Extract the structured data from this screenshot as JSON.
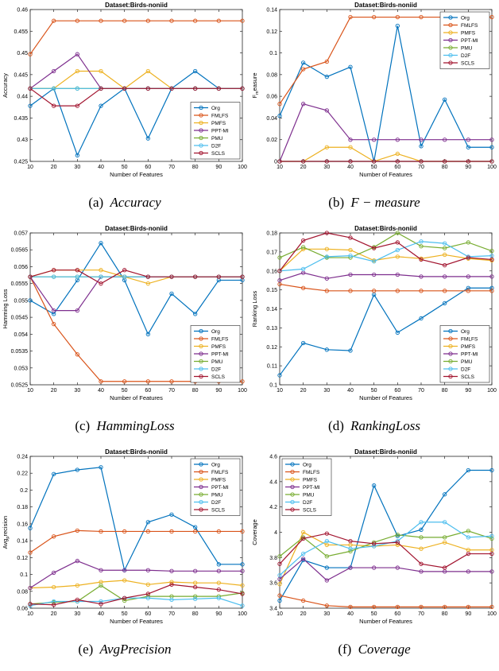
{
  "chart_data": [
    {
      "type": "line",
      "title": "Dataset:Birds-noniid",
      "xlabel": "Number of Features",
      "ylabel": "Accuracy",
      "caption_label": "(a)",
      "caption_metric": "Accuracy",
      "x": [
        10,
        20,
        30,
        40,
        50,
        60,
        70,
        80,
        90,
        100
      ],
      "xlim": [
        10,
        100
      ],
      "ylim": [
        0.425,
        0.46
      ],
      "yticks": [
        0.425,
        0.43,
        0.435,
        0.44,
        0.445,
        0.45,
        0.455,
        0.46
      ],
      "ytick_labels": [
        "0.425",
        "0.43",
        "0.435",
        "0.44",
        "0.445",
        "0.45",
        "0.455",
        "0.46"
      ],
      "legend_position": "bottom-right",
      "series": [
        {
          "name": "Org",
          "color": "#0072BD",
          "values": [
            0.4378,
            0.4418,
            0.4264,
            0.4378,
            0.4418,
            0.4303,
            0.4418,
            0.4458,
            0.4418,
            0.4418
          ]
        },
        {
          "name": "FMLFS",
          "color": "#D95319",
          "values": [
            0.4497,
            0.4574,
            0.4574,
            0.4574,
            0.4574,
            0.4574,
            0.4574,
            0.4574,
            0.4574,
            0.4574
          ]
        },
        {
          "name": "PMFS",
          "color": "#EDB120",
          "values": [
            0.4418,
            0.4418,
            0.4458,
            0.4458,
            0.4418,
            0.4458,
            0.4418,
            0.4418,
            0.4418,
            0.4418
          ]
        },
        {
          "name": "PPT-MI",
          "color": "#7E2F8E",
          "values": [
            0.4418,
            0.4458,
            0.4497,
            0.4418,
            0.4418,
            0.4418,
            0.4418,
            0.4418,
            0.4418,
            0.4418
          ]
        },
        {
          "name": "PMU",
          "color": "#77AC30",
          "values": [
            0.4418,
            0.4418,
            0.4418,
            0.4418,
            0.4418,
            0.4418,
            0.4418,
            0.4418,
            0.4418,
            0.4418
          ]
        },
        {
          "name": "D2F",
          "color": "#4DBEEE",
          "values": [
            0.4418,
            0.4418,
            0.4418,
            0.4418,
            0.4418,
            0.4418,
            0.4418,
            0.4418,
            0.4418,
            0.4418
          ]
        },
        {
          "name": "SCLS",
          "color": "#A2142F",
          "values": [
            0.4418,
            0.4378,
            0.4378,
            0.4418,
            0.4418,
            0.4418,
            0.4418,
            0.4418,
            0.4418,
            0.4418
          ]
        }
      ]
    },
    {
      "type": "line",
      "title": "Dataset:Birds-noniid",
      "xlabel": "Number of Features",
      "ylabel": "F_measure",
      "ylabel_main": "F",
      "ylabel_sub": "m",
      "ylabel_rest": "easure",
      "caption_label": "(b)",
      "caption_metric": "F − measure",
      "x": [
        10,
        20,
        30,
        40,
        50,
        60,
        70,
        80,
        90,
        100
      ],
      "xlim": [
        10,
        100
      ],
      "ylim": [
        0,
        0.14
      ],
      "yticks": [
        0,
        0.02,
        0.04,
        0.06,
        0.08,
        0.1,
        0.12,
        0.14
      ],
      "ytick_labels": [
        "0",
        "0.02",
        "0.04",
        "0.06",
        "0.08",
        "0.1",
        "0.12",
        "0.14"
      ],
      "legend_position": "top-right",
      "series": [
        {
          "name": "Org",
          "color": "#0072BD",
          "values": [
            0.042,
            0.091,
            0.078,
            0.087,
            0.0,
            0.125,
            0.014,
            0.057,
            0.013,
            0.013
          ]
        },
        {
          "name": "FMLFS",
          "color": "#D95319",
          "values": [
            0.053,
            0.085,
            0.092,
            0.133,
            0.133,
            0.133,
            0.133,
            0.133,
            0.133,
            0.133
          ]
        },
        {
          "name": "PMFS",
          "color": "#EDB120",
          "values": [
            0.0,
            0.0,
            0.013,
            0.013,
            0.0,
            0.007,
            0.0,
            0.0,
            0.0,
            0.0
          ]
        },
        {
          "name": "PPT-MI",
          "color": "#7E2F8E",
          "values": [
            0.0,
            0.053,
            0.047,
            0.02,
            0.02,
            0.02,
            0.02,
            0.02,
            0.02,
            0.02
          ]
        },
        {
          "name": "PMU",
          "color": "#77AC30",
          "values": [
            0.0,
            0.0,
            0.0,
            0.0,
            0.0,
            0.0,
            0.0,
            0.0,
            0.0,
            0.0
          ]
        },
        {
          "name": "D2F",
          "color": "#4DBEEE",
          "values": [
            0.0,
            0.0,
            0.0,
            0.0,
            0.0,
            0.0,
            0.0,
            0.0,
            0.0,
            0.0
          ]
        },
        {
          "name": "SCLS",
          "color": "#A2142F",
          "values": [
            0.0,
            0.0,
            0.0,
            0.0,
            0.0,
            0.0,
            0.0,
            0.0,
            0.0,
            0.0
          ]
        }
      ]
    },
    {
      "type": "line",
      "title": "Dataset:Birds-noniid",
      "xlabel": "Number of Features",
      "ylabel": "Hamming Loss",
      "caption_label": "(c)",
      "caption_metric": "HammingLoss",
      "x": [
        10,
        20,
        30,
        40,
        50,
        60,
        70,
        80,
        90,
        100
      ],
      "xlim": [
        10,
        100
      ],
      "ylim": [
        0.0525,
        0.057
      ],
      "yticks": [
        0.0525,
        0.053,
        0.0535,
        0.054,
        0.0545,
        0.055,
        0.0555,
        0.056,
        0.0565,
        0.057
      ],
      "ytick_labels": [
        "0.0525",
        "0.053",
        "0.0535",
        "0.054",
        "0.0545",
        "0.055",
        "0.0555",
        "0.056",
        "0.0565",
        "0.057"
      ],
      "legend_position": "bottom-right",
      "series": [
        {
          "name": "Org",
          "color": "#0072BD",
          "values": [
            0.055,
            0.0546,
            0.0556,
            0.0567,
            0.0556,
            0.054,
            0.0552,
            0.0546,
            0.0556,
            0.0556
          ]
        },
        {
          "name": "FMLFS",
          "color": "#D95319",
          "values": [
            0.0557,
            0.0543,
            0.0534,
            0.0526,
            0.0526,
            0.0526,
            0.0526,
            0.0526,
            0.0526,
            0.0526
          ]
        },
        {
          "name": "PMFS",
          "color": "#EDB120",
          "values": [
            0.0557,
            0.0559,
            0.0559,
            0.0559,
            0.0557,
            0.0555,
            0.0557,
            0.0557,
            0.0557,
            0.0557
          ]
        },
        {
          "name": "PPT-MI",
          "color": "#7E2F8E",
          "values": [
            0.0557,
            0.0547,
            0.0547,
            0.0557,
            0.0557,
            0.0557,
            0.0557,
            0.0557,
            0.0557,
            0.0557
          ]
        },
        {
          "name": "PMU",
          "color": "#77AC30",
          "values": [
            0.0557,
            0.0557,
            0.0557,
            0.0557,
            0.0557,
            0.0557,
            0.0557,
            0.0557,
            0.0557,
            0.0557
          ]
        },
        {
          "name": "D2F",
          "color": "#4DBEEE",
          "values": [
            0.0557,
            0.0557,
            0.0557,
            0.0557,
            0.0557,
            0.0557,
            0.0557,
            0.0557,
            0.0557,
            0.0557
          ]
        },
        {
          "name": "SCLS",
          "color": "#A2142F",
          "values": [
            0.0557,
            0.0559,
            0.0559,
            0.0555,
            0.0559,
            0.0557,
            0.0557,
            0.0557,
            0.0557,
            0.0557
          ]
        }
      ]
    },
    {
      "type": "line",
      "title": "Dataset:Birds-noniid",
      "xlabel": "Number of Features",
      "ylabel": "Ranking Loss",
      "caption_label": "(d)",
      "caption_metric": "RankingLoss",
      "x": [
        10,
        20,
        30,
        40,
        50,
        60,
        70,
        80,
        90,
        100
      ],
      "xlim": [
        10,
        100
      ],
      "ylim": [
        0.1,
        0.18
      ],
      "yticks": [
        0.1,
        0.11,
        0.12,
        0.13,
        0.14,
        0.15,
        0.16,
        0.17,
        0.18
      ],
      "ytick_labels": [
        "0.1",
        "0.11",
        "0.12",
        "0.13",
        "0.14",
        "0.15",
        "0.16",
        "0.17",
        "0.18"
      ],
      "legend_position": "bottom-right",
      "series": [
        {
          "name": "Org",
          "color": "#0072BD",
          "values": [
            0.105,
            0.122,
            0.1185,
            0.118,
            0.1475,
            0.1275,
            0.135,
            0.143,
            0.151,
            0.151
          ]
        },
        {
          "name": "FMLFS",
          "color": "#D95319",
          "values": [
            0.153,
            0.151,
            0.1495,
            0.1495,
            0.1495,
            0.1495,
            0.1495,
            0.1495,
            0.1495,
            0.1495
          ]
        },
        {
          "name": "PMFS",
          "color": "#EDB120",
          "values": [
            0.16,
            0.1715,
            0.1715,
            0.171,
            0.1655,
            0.1675,
            0.1665,
            0.1685,
            0.1665,
            0.1655
          ]
        },
        {
          "name": "PPT-MI",
          "color": "#7E2F8E",
          "values": [
            0.155,
            0.159,
            0.156,
            0.158,
            0.158,
            0.158,
            0.157,
            0.157,
            0.157,
            0.157
          ]
        },
        {
          "name": "PMU",
          "color": "#77AC30",
          "values": [
            0.167,
            0.1725,
            0.167,
            0.167,
            0.1725,
            0.18,
            0.173,
            0.172,
            0.175,
            0.1705
          ]
        },
        {
          "name": "D2F",
          "color": "#4DBEEE",
          "values": [
            0.16,
            0.161,
            0.1675,
            0.168,
            0.165,
            0.171,
            0.1755,
            0.1745,
            0.1675,
            0.168
          ]
        },
        {
          "name": "SCLS",
          "color": "#A2142F",
          "values": [
            0.16,
            0.176,
            0.18,
            0.1775,
            0.172,
            0.175,
            0.166,
            0.163,
            0.167,
            0.166
          ]
        }
      ]
    },
    {
      "type": "line",
      "title": "Dataset:Birds-noniid",
      "xlabel": "Number of Features",
      "ylabel": "Avg_precision",
      "ylabel_main": "Avg",
      "ylabel_sub": "p",
      "ylabel_rest": "recision",
      "caption_label": "(e)",
      "caption_metric": "AvgPrecision",
      "x": [
        10,
        20,
        30,
        40,
        50,
        60,
        70,
        80,
        90,
        100
      ],
      "xlim": [
        10,
        100
      ],
      "ylim": [
        0.06,
        0.24
      ],
      "yticks": [
        0.06,
        0.08,
        0.1,
        0.12,
        0.14,
        0.16,
        0.18,
        0.2,
        0.22,
        0.24
      ],
      "ytick_labels": [
        "0.06",
        "0.08",
        "0.1",
        "0.12",
        "0.14",
        "0.16",
        "0.18",
        "0.2",
        "0.22",
        "0.24"
      ],
      "legend_position": "top-right",
      "series": [
        {
          "name": "Org",
          "color": "#0072BD",
          "values": [
            0.155,
            0.219,
            0.224,
            0.227,
            0.105,
            0.162,
            0.171,
            0.156,
            0.112,
            0.112
          ]
        },
        {
          "name": "FMLFS",
          "color": "#D95319",
          "values": [
            0.126,
            0.145,
            0.152,
            0.151,
            0.151,
            0.151,
            0.151,
            0.151,
            0.151,
            0.151
          ]
        },
        {
          "name": "PMFS",
          "color": "#EDB120",
          "values": [
            0.084,
            0.085,
            0.087,
            0.091,
            0.093,
            0.088,
            0.091,
            0.09,
            0.09,
            0.087
          ]
        },
        {
          "name": "PPT-MI",
          "color": "#7E2F8E",
          "values": [
            0.084,
            0.102,
            0.116,
            0.105,
            0.105,
            0.105,
            0.104,
            0.104,
            0.104,
            0.104
          ]
        },
        {
          "name": "PMU",
          "color": "#77AC30",
          "values": [
            0.065,
            0.067,
            0.068,
            0.087,
            0.069,
            0.074,
            0.074,
            0.074,
            0.074,
            0.078
          ]
        },
        {
          "name": "D2F",
          "color": "#4DBEEE",
          "values": [
            0.063,
            0.068,
            0.068,
            0.068,
            0.072,
            0.072,
            0.07,
            0.071,
            0.072,
            0.063
          ]
        },
        {
          "name": "SCLS",
          "color": "#A2142F",
          "values": [
            0.065,
            0.064,
            0.07,
            0.065,
            0.072,
            0.077,
            0.088,
            0.085,
            0.082,
            0.077
          ]
        }
      ]
    },
    {
      "type": "line",
      "title": "Dataset:Birds-noniid",
      "xlabel": "Number of Features",
      "ylabel": "Coverage",
      "caption_label": "(f)",
      "caption_metric": "Coverage",
      "x": [
        10,
        20,
        30,
        40,
        50,
        60,
        70,
        80,
        90,
        100
      ],
      "xlim": [
        10,
        100
      ],
      "ylim": [
        3.4,
        4.6
      ],
      "yticks": [
        3.4,
        3.6,
        3.8,
        4.0,
        4.2,
        4.4,
        4.6
      ],
      "ytick_labels": [
        "3.4",
        "3.6",
        "3.8",
        "4",
        "4.2",
        "4.4",
        "4.6"
      ],
      "legend_position": "top-left",
      "series": [
        {
          "name": "Org",
          "color": "#0072BD",
          "values": [
            3.46,
            3.78,
            3.72,
            3.72,
            4.37,
            3.97,
            4.02,
            4.3,
            4.49,
            4.49
          ]
        },
        {
          "name": "FMLFS",
          "color": "#D95319",
          "values": [
            3.5,
            3.46,
            3.42,
            3.41,
            3.41,
            3.41,
            3.41,
            3.41,
            3.41,
            3.41
          ]
        },
        {
          "name": "PMFS",
          "color": "#EDB120",
          "values": [
            3.59,
            4.0,
            3.9,
            3.9,
            3.89,
            3.9,
            3.87,
            3.92,
            3.86,
            3.86
          ]
        },
        {
          "name": "PPT-MI",
          "color": "#7E2F8E",
          "values": [
            3.63,
            3.79,
            3.62,
            3.72,
            3.72,
            3.72,
            3.69,
            3.69,
            3.69,
            3.69
          ]
        },
        {
          "name": "PMU",
          "color": "#77AC30",
          "values": [
            3.81,
            3.96,
            3.81,
            3.85,
            3.92,
            3.98,
            3.96,
            3.96,
            4.01,
            3.95
          ]
        },
        {
          "name": "D2F",
          "color": "#4DBEEE",
          "values": [
            3.66,
            3.83,
            3.93,
            3.87,
            3.89,
            3.93,
            4.08,
            4.08,
            3.96,
            3.97
          ]
        },
        {
          "name": "SCLS",
          "color": "#A2142F",
          "values": [
            3.75,
            3.95,
            3.99,
            3.93,
            3.91,
            3.92,
            3.75,
            3.72,
            3.83,
            3.83
          ]
        }
      ]
    }
  ]
}
